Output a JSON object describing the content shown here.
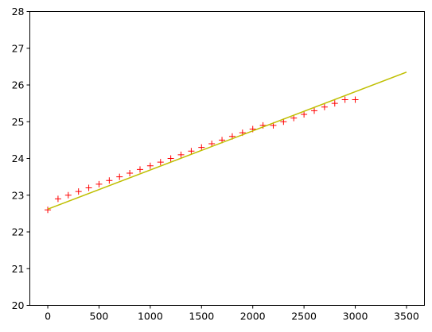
{
  "chart_data": {
    "type": "scatter",
    "title": "",
    "xlabel": "",
    "ylabel": "",
    "xlim": [
      -175,
      3675
    ],
    "ylim": [
      20,
      28
    ],
    "grid": false,
    "legend": "none",
    "xticks": [
      0,
      500,
      1000,
      1500,
      2000,
      2500,
      3000,
      3500
    ],
    "yticks": [
      20,
      21,
      22,
      23,
      24,
      25,
      26,
      27,
      28
    ],
    "xtick_labels": [
      "0",
      "500",
      "1000",
      "1500",
      "2000",
      "2500",
      "3000",
      "3500"
    ],
    "ytick_labels": [
      "20",
      "21",
      "22",
      "23",
      "24",
      "25",
      "26",
      "27",
      "28"
    ],
    "series": [
      {
        "kind": "scatter",
        "marker": "+",
        "color": "#ff0000",
        "x": [
          0,
          100,
          200,
          300,
          400,
          500,
          600,
          700,
          800,
          900,
          1000,
          1100,
          1200,
          1300,
          1400,
          1500,
          1600,
          1700,
          1800,
          1900,
          2000,
          2100,
          2200,
          2300,
          2400,
          2500,
          2600,
          2700,
          2800,
          2900,
          3000
        ],
        "y": [
          22.6,
          22.9,
          23.0,
          23.1,
          23.2,
          23.3,
          23.4,
          23.5,
          23.6,
          23.7,
          23.8,
          23.9,
          24.0,
          24.1,
          24.2,
          24.3,
          24.4,
          24.5,
          24.6,
          24.7,
          24.8,
          24.9,
          24.9,
          25.0,
          25.1,
          25.2,
          25.3,
          25.4,
          25.5,
          25.6,
          25.6
        ]
      },
      {
        "kind": "line",
        "color": "#bfbf00",
        "x": [
          0,
          3500
        ],
        "y": [
          22.62,
          26.35
        ]
      }
    ]
  }
}
